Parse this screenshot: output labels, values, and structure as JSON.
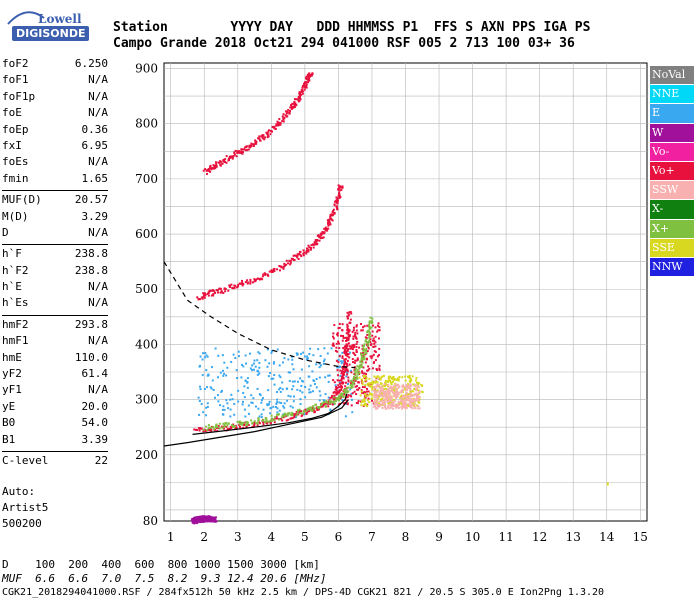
{
  "logo": {
    "line1": "Lowell",
    "line2": "DIGISONDE"
  },
  "header": {
    "row1": "Station        YYYY DAY   DDD HHMMSS P1  FFS S AXN PPS IGA PS",
    "row2": "Campo Grande 2018 Oct21 294 041000 RSF 005 2 713 100 03+ 36"
  },
  "params": [
    {
      "k": "foF2",
      "v": "6.250"
    },
    {
      "k": "foF1",
      "v": "N/A"
    },
    {
      "k": "foF1p",
      "v": "N/A"
    },
    {
      "k": "foE",
      "v": "N/A"
    },
    {
      "k": "foEp",
      "v": "0.36"
    },
    {
      "k": "fxI",
      "v": "6.95"
    },
    {
      "k": "foEs",
      "v": "N/A"
    },
    {
      "k": "fmin",
      "v": "1.65"
    },
    {
      "k": "MUF(D)",
      "v": "20.57"
    },
    {
      "k": "M(D)",
      "v": "3.29"
    },
    {
      "k": "D",
      "v": "N/A"
    },
    {
      "k": "h`F",
      "v": "238.8"
    },
    {
      "k": "h`F2",
      "v": "238.8"
    },
    {
      "k": "h`E",
      "v": "N/A"
    },
    {
      "k": "h`Es",
      "v": "N/A"
    },
    {
      "k": "hmF2",
      "v": "293.8"
    },
    {
      "k": "hmF1",
      "v": "N/A"
    },
    {
      "k": "hmE",
      "v": "110.0"
    },
    {
      "k": "yF2",
      "v": "61.4"
    },
    {
      "k": "yF1",
      "v": "N/A"
    },
    {
      "k": "yE",
      "v": "20.0"
    },
    {
      "k": "B0",
      "v": "54.0"
    },
    {
      "k": "B1",
      "v": "3.39"
    },
    {
      "k": "C-level",
      "v": "22"
    }
  ],
  "auto": {
    "line1": "Auto:",
    "line2": "Artist5",
    "line3": "500200"
  },
  "bottom": {
    "d_row": "D    100  200  400  600  800 1000 1500 3000 [km]",
    "muf_row": "MUF  6.6  6.6  7.0  7.5  8.2  9.3 12.4 20.6 [MHz]",
    "file_row": "CGK21_2018294041000.RSF / 284fx512h 50 kHz 2.5 km / DPS-4D CGK21 821 / 20.5 S 305.0 E Ion2Png 1.3.20"
  },
  "legend": [
    {
      "label": "NoVal",
      "bg": "#808080",
      "fg": "#ffffff"
    },
    {
      "label": "NNE",
      "bg": "#00d8f8",
      "fg": "#ffffff"
    },
    {
      "label": "E",
      "bg": "#3aa8f0",
      "fg": "#ffffff"
    },
    {
      "label": "W",
      "bg": "#a0109a",
      "fg": "#ffffff"
    },
    {
      "label": "Vo-",
      "bg": "#f020a0",
      "fg": "#ffffff"
    },
    {
      "label": "Vo+",
      "bg": "#e8103c",
      "fg": "#ffffff"
    },
    {
      "label": "SSW",
      "bg": "#f8b0b0",
      "fg": "#ffffff"
    },
    {
      "label": "X-",
      "bg": "#108010",
      "fg": "#ffffff"
    },
    {
      "label": "X+",
      "bg": "#80c040",
      "fg": "#ffffff"
    },
    {
      "label": "SSE",
      "bg": "#d8d820",
      "fg": "#ffffff"
    },
    {
      "label": "NNW",
      "bg": "#2020e0",
      "fg": "#ffffff"
    }
  ],
  "chart_data": {
    "type": "scatter",
    "title": "",
    "xlabel": "",
    "ylabel": "",
    "xlim": [
      0.8,
      15.2
    ],
    "ylim": [
      80,
      910
    ],
    "x_ticks": [
      "1",
      "2",
      "3",
      "4",
      "5",
      "6",
      "7",
      "8",
      "9",
      "10",
      "11",
      "12",
      "13",
      "14",
      "15"
    ],
    "y_ticks": [
      "80",
      "200",
      "300",
      "400",
      "500",
      "600",
      "700",
      "800",
      "900"
    ],
    "grid": true,
    "traces": [
      {
        "name": "F2 first hop (O)",
        "color": "#e8103c",
        "points": [
          [
            1.7,
            245
          ],
          [
            2.5,
            250
          ],
          [
            3.5,
            258
          ],
          [
            4.5,
            270
          ],
          [
            5.2,
            282
          ],
          [
            5.7,
            296
          ],
          [
            6.0,
            320
          ],
          [
            6.15,
            360
          ],
          [
            6.25,
            410
          ],
          [
            6.3,
            460
          ]
        ]
      },
      {
        "name": "F2 first hop (X)",
        "color": "#80c040",
        "points": [
          [
            2.0,
            250
          ],
          [
            3.0,
            258
          ],
          [
            4.0,
            268
          ],
          [
            5.0,
            282
          ],
          [
            5.8,
            298
          ],
          [
            6.3,
            320
          ],
          [
            6.6,
            360
          ],
          [
            6.8,
            400
          ],
          [
            6.95,
            450
          ]
        ]
      },
      {
        "name": "F2 second hop",
        "color": "#e8103c",
        "points": [
          [
            1.8,
            488
          ],
          [
            2.5,
            500
          ],
          [
            3.5,
            520
          ],
          [
            4.5,
            550
          ],
          [
            5.2,
            580
          ],
          [
            5.6,
            610
          ],
          [
            5.9,
            650
          ],
          [
            6.05,
            690
          ]
        ]
      },
      {
        "name": "F2 third hop",
        "color": "#e8103c",
        "points": [
          [
            2.0,
            715
          ],
          [
            2.6,
            735
          ],
          [
            3.3,
            760
          ],
          [
            4.0,
            790
          ],
          [
            4.6,
            830
          ],
          [
            4.95,
            865
          ],
          [
            5.15,
            895
          ]
        ]
      },
      {
        "name": "E echoes",
        "color": "#a0109a",
        "points": [
          [
            1.65,
            82
          ],
          [
            1.8,
            84
          ],
          [
            2.0,
            86
          ],
          [
            2.3,
            85
          ]
        ]
      },
      {
        "name": "Isolated X+",
        "color": "#d8d820",
        "points": [
          [
            14.0,
            150
          ]
        ]
      }
    ],
    "diffuse_regions": [
      {
        "name": "Spread F (NNE/E)",
        "color": "#3aa8f0",
        "x": [
          1.8,
          6.4
        ],
        "y": [
          270,
          395
        ]
      },
      {
        "name": "Spread F (Vo+)",
        "color": "#e8103c",
        "x": [
          5.8,
          7.2
        ],
        "y": [
          290,
          440
        ]
      },
      {
        "name": "Spread F (SSE)",
        "color": "#d8d820",
        "x": [
          6.6,
          8.5
        ],
        "y": [
          290,
          345
        ]
      },
      {
        "name": "Spread F (SSW)",
        "color": "#f8b0b0",
        "x": [
          7.0,
          8.4
        ],
        "y": [
          285,
          330
        ]
      }
    ],
    "profile_curve": {
      "color": "#000000",
      "points": [
        [
          1.65,
          237
        ],
        [
          2.5,
          243
        ],
        [
          3.5,
          250
        ],
        [
          4.5,
          258
        ],
        [
          5.2,
          266
        ],
        [
          5.7,
          275
        ],
        [
          6.0,
          288
        ],
        [
          6.2,
          300
        ],
        [
          6.25,
          310
        ]
      ]
    },
    "muf_curve": {
      "color": "#000000",
      "dashed": true,
      "points": [
        [
          0.8,
          550
        ],
        [
          1.5,
          480
        ],
        [
          2.2,
          450
        ],
        [
          3.0,
          420
        ],
        [
          4.0,
          390
        ],
        [
          5.0,
          372
        ],
        [
          6.0,
          360
        ],
        [
          6.5,
          358
        ]
      ]
    },
    "lower_curve": {
      "color": "#000000",
      "points": [
        [
          0.8,
          216
        ],
        [
          1.5,
          222
        ],
        [
          2.5,
          232
        ],
        [
          3.5,
          242
        ],
        [
          4.5,
          255
        ],
        [
          5.5,
          268
        ],
        [
          6.1,
          285
        ],
        [
          6.3,
          300
        ]
      ]
    }
  }
}
